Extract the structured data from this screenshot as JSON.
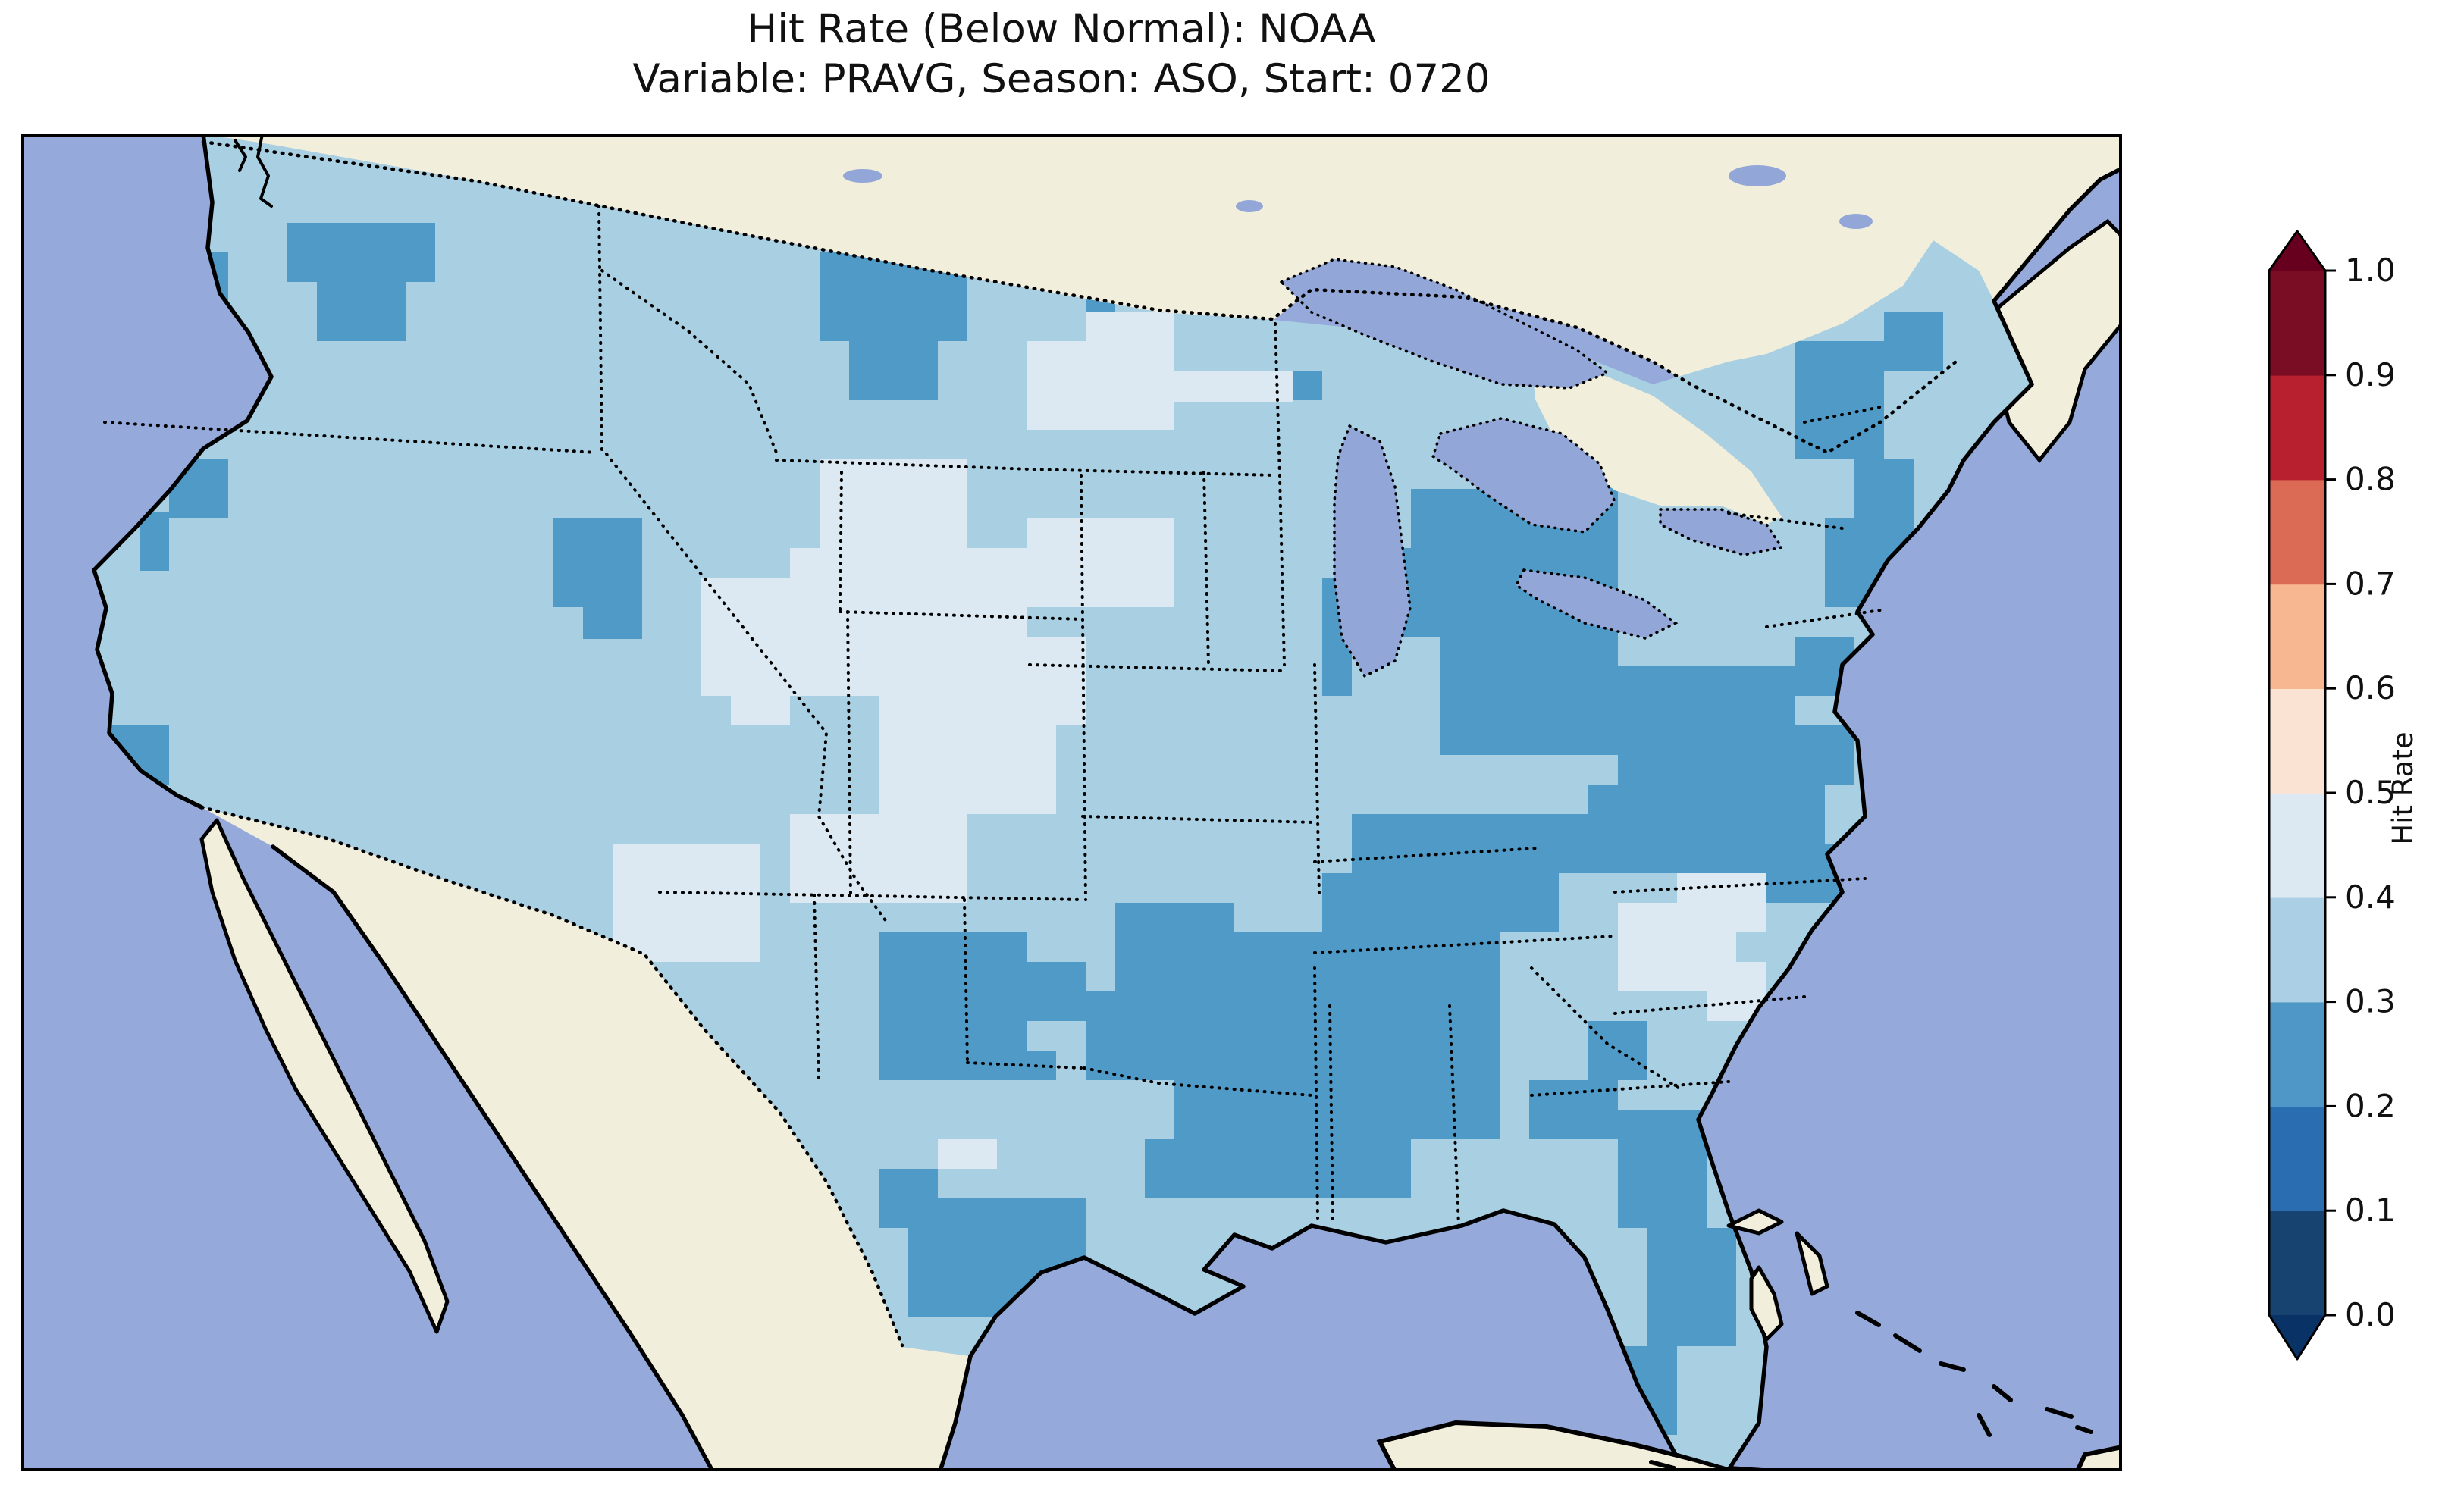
{
  "title": {
    "line1": "Hit Rate (Below Normal): NOAA",
    "line2": "Variable: PRAVG, Season: ASO, Start: 0720"
  },
  "colorbar": {
    "label": "Hit Rate",
    "ticks": [
      "0.0",
      "0.1",
      "0.2",
      "0.3",
      "0.4",
      "0.5",
      "0.6",
      "0.7",
      "0.8",
      "0.9",
      "1.0"
    ],
    "bins": [
      {
        "range": "0.0-0.1",
        "color": "#16436f"
      },
      {
        "range": "0.1-0.2",
        "color": "#2b6db1"
      },
      {
        "range": "0.2-0.3",
        "color": "#4f97c6"
      },
      {
        "range": "0.3-0.4",
        "color": "#abd0e6"
      },
      {
        "range": "0.4-0.5",
        "color": "#dce9f2"
      },
      {
        "range": "0.5-0.6",
        "color": "#fbe3d4"
      },
      {
        "range": "0.6-0.7",
        "color": "#f7b791"
      },
      {
        "range": "0.7-0.8",
        "color": "#db6b55"
      },
      {
        "range": "0.8-0.9",
        "color": "#b8202f"
      },
      {
        "range": "0.9-1.0",
        "color": "#7a0c24"
      }
    ],
    "arrow_top_color": "#67001f",
    "arrow_bottom_color": "#093366",
    "extend": "both"
  },
  "map": {
    "colors": {
      "ocean": "#95a9da",
      "land": "#f1eedb",
      "lake": "#93a6d8",
      "us_base": "#a9cfe3",
      "b0": "#dce9f2",
      "b2": "#4f9ac7",
      "coast": "#000000",
      "border": "#000000",
      "frame": "#000000"
    },
    "patches": [
      {
        "bin": "b2",
        "name": "pacific-nw-montana",
        "rects": [
          [
            351,
            117,
            195,
            78
          ],
          [
            390,
            195,
            117,
            78
          ],
          [
            234,
            156,
            39,
            117
          ],
          [
            1053,
            156,
            195,
            117
          ],
          [
            1092,
            273,
            117,
            78
          ],
          [
            1404,
            195,
            39,
            42
          ]
        ]
      },
      {
        "bin": "b2",
        "name": "west-coast-cells",
        "rects": [
          [
            195,
            429,
            78,
            78
          ],
          [
            156,
            498,
            39,
            78
          ],
          [
            117,
            780,
            78,
            78
          ]
        ]
      },
      {
        "bin": "b2",
        "name": "idaho-utah",
        "rects": [
          [
            702,
            507,
            117,
            117
          ],
          [
            741,
            624,
            78,
            42
          ]
        ]
      },
      {
        "bin": "b2",
        "name": "midwest-ohio-valley",
        "rects": [
          [
            1833,
            468,
            273,
            195
          ],
          [
            1872,
            663,
            234,
            156
          ],
          [
            1794,
            546,
            78,
            117
          ],
          [
            1950,
            429,
            156,
            117
          ],
          [
            1716,
            585,
            39,
            156
          ],
          [
            1638,
            312,
            78,
            39
          ]
        ]
      },
      {
        "bin": "b2",
        "name": "appalachia-carolinas",
        "rects": [
          [
            2106,
            702,
            234,
            156
          ],
          [
            2067,
            858,
            312,
            117
          ],
          [
            2262,
            936,
            156,
            78
          ],
          [
            2301,
            780,
            117,
            78
          ]
        ]
      },
      {
        "bin": "b2",
        "name": "kentucky-tennessee",
        "rects": [
          [
            1755,
            897,
            351,
            78
          ],
          [
            1716,
            975,
            312,
            78
          ]
        ]
      },
      {
        "bin": "b2",
        "name": "deep-south",
        "rects": [
          [
            1599,
            1053,
            351,
            273
          ],
          [
            1560,
            1287,
            273,
            117
          ],
          [
            1521,
            1209,
            78,
            117
          ],
          [
            1404,
            1131,
            195,
            117
          ],
          [
            1443,
            1014,
            156,
            117
          ],
          [
            1482,
            1326,
            117,
            78
          ]
        ]
      },
      {
        "bin": "b2",
        "name": "texas",
        "rects": [
          [
            1131,
            1053,
            195,
            195
          ],
          [
            1326,
            1092,
            78,
            78
          ],
          [
            1287,
            1209,
            78,
            39
          ],
          [
            1170,
            1404,
            234,
            156
          ],
          [
            1131,
            1365,
            78,
            78
          ]
        ]
      },
      {
        "bin": "b2",
        "name": "florida",
        "rects": [
          [
            2106,
            1287,
            117,
            156
          ],
          [
            2145,
            1443,
            117,
            156
          ],
          [
            2106,
            1599,
            78,
            117
          ],
          [
            1989,
            1248,
            117,
            78
          ],
          [
            2067,
            1170,
            78,
            78
          ]
        ]
      },
      {
        "bin": "b2",
        "name": "northeast",
        "rects": [
          [
            2340,
            273,
            117,
            156
          ],
          [
            2379,
            507,
            117,
            117
          ],
          [
            2340,
            663,
            78,
            78
          ],
          [
            2457,
            234,
            78,
            78
          ],
          [
            2418,
            429,
            78,
            78
          ]
        ]
      },
      {
        "bin": "b0",
        "name": "montana-dakotas-pale",
        "rects": [
          [
            1326,
            273,
            195,
            117
          ],
          [
            1404,
            234,
            117,
            78
          ],
          [
            1521,
            312,
            156,
            42
          ],
          [
            1443,
            83,
            117,
            39
          ]
        ]
      },
      {
        "bin": "b0",
        "name": "rockies-great-basin-pale",
        "rects": [
          [
            1053,
            429,
            195,
            117
          ],
          [
            1014,
            546,
            312,
            195
          ],
          [
            1131,
            741,
            234,
            156
          ],
          [
            1326,
            507,
            195,
            117
          ],
          [
            897,
            585,
            156,
            156
          ],
          [
            936,
            702,
            78,
            78
          ],
          [
            780,
            936,
            195,
            156
          ],
          [
            1014,
            897,
            234,
            117
          ],
          [
            1248,
            663,
            156,
            117
          ],
          [
            1209,
            1326,
            78,
            39
          ]
        ]
      },
      {
        "bin": "b0",
        "name": "georgia-carolina-pale",
        "rects": [
          [
            2106,
            1014,
            156,
            117
          ],
          [
            2184,
            975,
            117,
            78
          ],
          [
            2223,
            1092,
            78,
            78
          ]
        ]
      }
    ]
  },
  "chart_data": {
    "type": "heatmap",
    "subtype": "gridded geographic hit-rate map (CONUS, Lambert-conic style projection)",
    "title": "Hit Rate (Below Normal): NOAA",
    "subtitle": "Variable: PRAVG, Season: ASO, Start: 0720",
    "colorbar_label": "Hit Rate",
    "colorbar_ticks": [
      0.0,
      0.1,
      0.2,
      0.3,
      0.4,
      0.5,
      0.6,
      0.7,
      0.8,
      0.9,
      1.0
    ],
    "colormap": "RdBu_r, discrete 0.1-wide bins, extended arrows both ends",
    "value_range_shown_on_scale": [
      0.0,
      1.0
    ],
    "bins_present_on_map": [
      "0.2-0.3",
      "0.3-0.4",
      "0.4-0.5"
    ],
    "regional_summary": [
      {
        "region": "Most of CONUS (background)",
        "hit_rate_bin": "0.3-0.4"
      },
      {
        "region": "Rockies / Great Basin / central High Plains / western Dakotas",
        "hit_rate_bin": "0.4-0.5"
      },
      {
        "region": "Mississippi-Alabama-Louisiana Deep South",
        "hit_rate_bin": "0.2-0.3"
      },
      {
        "region": "Ohio Valley / Indiana-Ohio / Kentucky-Tennessee",
        "hit_rate_bin": "0.2-0.3"
      },
      {
        "region": "Appalachians / Virginia-Carolinas",
        "hit_rate_bin": "0.2-0.3"
      },
      {
        "region": "North-central and South Texas",
        "hit_rate_bin": "0.2-0.3"
      },
      {
        "region": "Florida peninsula",
        "hit_rate_bin": "0.2-0.3"
      },
      {
        "region": "NE Washington / W Montana / Idaho-Utah border",
        "hit_rate_bin": "0.2-0.3"
      },
      {
        "region": "Upstate New York / scattered New England",
        "hit_rate_bin": "0.2-0.3"
      },
      {
        "region": "Central Georgia / South Carolina pockets",
        "hit_rate_bin": "0.4-0.5"
      }
    ],
    "non_data_features": [
      "ocean and Great Lakes in periwinkle blue",
      "non-US land (Canada, Mexico, Cuba, Bahamas) in cream",
      "solid black coastlines",
      "dotted black state and country borders"
    ]
  }
}
